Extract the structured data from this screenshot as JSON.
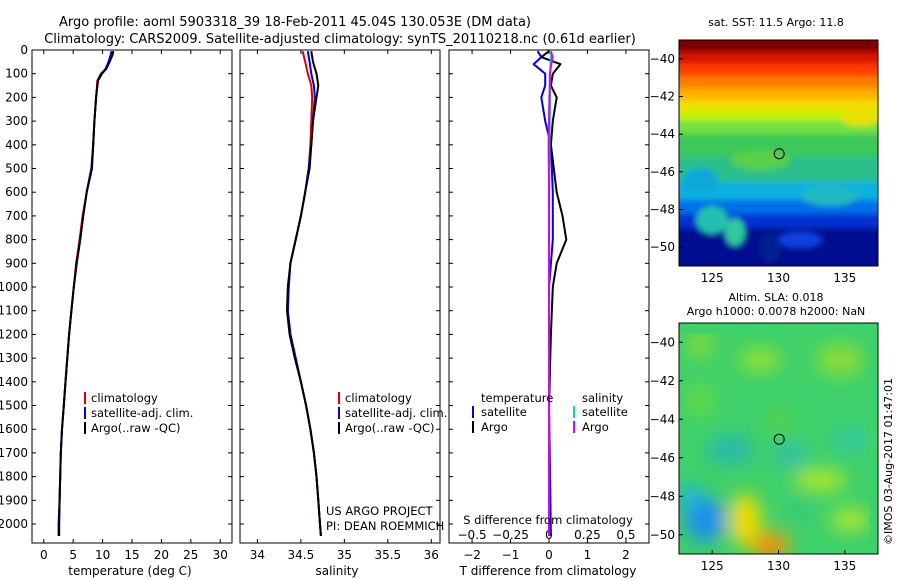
{
  "title_line1": "Argo profile: aoml 5903318_39 18-Feb-2011 45.04S 130.053E (DM data)",
  "title_line2": "Climatology: CARS2009. Satellite-adjusted climatology: synTS_20110218.nc (0.61d earlier)",
  "credits": {
    "project": "US ARGO PROJECT",
    "pi": "PI: DEAN ROEMMICH",
    "imos": "©IMOS 03-Aug-2017 01:47:01"
  },
  "colors": {
    "climatology": "#e00000",
    "satellite": "#0000e0",
    "argo": "#000000",
    "sat_salinity": "#00d8d8",
    "argo_salinity": "#e000e0"
  },
  "chart_data": [
    {
      "type": "line",
      "name": "temperature",
      "xlabel": "temperature (deg C)",
      "ylabel": "",
      "xlim": [
        -2,
        32
      ],
      "ylim": [
        2080,
        0
      ],
      "xticks": [
        0,
        5,
        10,
        15,
        20,
        25,
        30
      ],
      "yticks": [
        0,
        100,
        200,
        300,
        400,
        500,
        600,
        700,
        800,
        900,
        1000,
        1100,
        1200,
        1300,
        1400,
        1500,
        1600,
        1700,
        1800,
        1900,
        2000
      ],
      "legend": [
        "climatology",
        "satellite-adj. clim.",
        "Argo(..raw -QC)"
      ],
      "series": [
        {
          "name": "climatology",
          "color": "#e00000",
          "depth": [
            5,
            20,
            50,
            80,
            100,
            130,
            200,
            300,
            400,
            500,
            600,
            700,
            800,
            900,
            1000,
            1100,
            1200,
            1300,
            1400,
            1500,
            1600,
            1700,
            1800,
            1900,
            2000,
            2050
          ],
          "values": [
            11.8,
            11.6,
            11.1,
            10.6,
            9.7,
            9.1,
            8.9,
            8.6,
            8.4,
            8.1,
            7.3,
            6.6,
            6.1,
            5.5,
            5.1,
            4.7,
            4.3,
            4.0,
            3.7,
            3.4,
            3.1,
            2.9,
            2.8,
            2.7,
            2.5,
            2.5
          ]
        },
        {
          "name": "satellite",
          "color": "#0000e0",
          "depth": [
            5,
            20,
            50,
            80,
            100,
            130,
            200,
            300,
            400,
            500,
            600,
            700,
            800,
            900,
            1000,
            1100,
            1200,
            1300,
            1400,
            1500,
            1600,
            1700,
            1800,
            1900,
            2000,
            2050
          ],
          "values": [
            11.5,
            11.4,
            11.0,
            10.5,
            9.8,
            9.2,
            8.9,
            8.6,
            8.4,
            8.1,
            7.3,
            6.7,
            6.2,
            5.6,
            5.1,
            4.7,
            4.3,
            4.0,
            3.7,
            3.4,
            3.1,
            2.9,
            2.8,
            2.7,
            2.6,
            2.6
          ]
        },
        {
          "name": "Argo",
          "color": "#000000",
          "depth": [
            5,
            20,
            50,
            80,
            100,
            130,
            200,
            300,
            400,
            500,
            600,
            700,
            800,
            900,
            1000,
            1100,
            1200,
            1300,
            1400,
            1500,
            1600,
            1700,
            1800,
            1900,
            2000,
            2050
          ],
          "values": [
            11.8,
            11.7,
            11.2,
            10.6,
            9.9,
            9.2,
            8.9,
            8.6,
            8.4,
            8.2,
            7.3,
            6.7,
            6.2,
            5.6,
            5.1,
            4.7,
            4.3,
            4.0,
            3.7,
            3.4,
            3.1,
            2.9,
            2.8,
            2.7,
            2.6,
            2.6
          ]
        }
      ]
    },
    {
      "type": "line",
      "name": "salinity",
      "xlabel": "salinity",
      "xlim": [
        33.8,
        36.1
      ],
      "ylim": [
        2080,
        0
      ],
      "xticks": [
        34,
        34.5,
        35,
        35.5,
        36
      ],
      "legend": [
        "climatology",
        "satellite-adj. clim.",
        "Argo(..raw -QC)"
      ],
      "series": [
        {
          "name": "climatology",
          "color": "#e00000",
          "depth": [
            5,
            50,
            100,
            150,
            200,
            300,
            400,
            500,
            600,
            700,
            800,
            900,
            1000,
            1100,
            1200,
            1300,
            1400,
            1500,
            1600,
            1700,
            1800,
            1900,
            2000,
            2050
          ],
          "values": [
            34.52,
            34.55,
            34.58,
            34.62,
            34.63,
            34.62,
            34.61,
            34.59,
            34.55,
            34.5,
            34.44,
            34.38,
            34.36,
            34.35,
            34.38,
            34.44,
            34.5,
            34.56,
            34.61,
            34.65,
            34.68,
            34.7,
            34.72,
            34.73
          ]
        },
        {
          "name": "satellite",
          "color": "#0000e0",
          "depth": [
            5,
            50,
            100,
            150,
            200,
            300,
            400,
            500,
            600,
            700,
            800,
            900,
            1000,
            1100,
            1200,
            1300,
            1400,
            1500,
            1600,
            1700,
            1800,
            1900,
            2000,
            2050
          ],
          "values": [
            34.58,
            34.6,
            34.62,
            34.65,
            34.66,
            34.64,
            34.62,
            34.59,
            34.55,
            34.5,
            34.44,
            34.38,
            34.36,
            34.35,
            34.38,
            34.44,
            34.5,
            34.56,
            34.61,
            34.65,
            34.68,
            34.7,
            34.72,
            34.73
          ]
        },
        {
          "name": "Argo",
          "color": "#000000",
          "depth": [
            5,
            50,
            100,
            150,
            200,
            300,
            400,
            500,
            600,
            700,
            800,
            900,
            1000,
            1100,
            1200,
            1300,
            1400,
            1500,
            1600,
            1700,
            1800,
            1900,
            2000,
            2050
          ],
          "values": [
            34.62,
            34.64,
            34.68,
            34.7,
            34.68,
            34.64,
            34.62,
            34.6,
            34.55,
            34.5,
            34.44,
            34.38,
            34.35,
            34.34,
            34.37,
            34.43,
            34.5,
            34.56,
            34.61,
            34.65,
            34.68,
            34.7,
            34.72,
            34.73
          ]
        }
      ]
    },
    {
      "type": "line",
      "name": "difference",
      "xlabel": "T difference from climatology",
      "xlabel_top": "S difference from climatology",
      "xlim": [
        -2.6,
        2.6
      ],
      "ylim": [
        2080,
        0
      ],
      "xticks": [
        -2,
        -1,
        0,
        1,
        2
      ],
      "xticks_top": [
        -0.5,
        -0.25,
        0,
        0.25,
        0.5
      ],
      "legend_headers": [
        "temperature",
        "salinity"
      ],
      "legend": [
        "satellite",
        "Argo",
        "satellite",
        "Argo"
      ],
      "series": [
        {
          "name": "T satellite",
          "color": "#0000e0",
          "depth": [
            5,
            30,
            60,
            100,
            150,
            200,
            300,
            400,
            600,
            800,
            1000,
            1500,
            2050
          ],
          "values": [
            -0.3,
            -0.2,
            -0.4,
            -0.1,
            -0.1,
            -0.2,
            -0.1,
            0.05,
            0.1,
            0.1,
            0.0,
            0.0,
            0.05
          ]
        },
        {
          "name": "T Argo",
          "color": "#000000",
          "depth": [
            5,
            30,
            60,
            100,
            150,
            200,
            300,
            400,
            600,
            700,
            800,
            900,
            1000,
            1200,
            1500,
            2050
          ],
          "values": [
            0.0,
            -0.2,
            0.3,
            0.1,
            0.05,
            0.2,
            0.1,
            0.05,
            0.2,
            0.35,
            0.45,
            0.2,
            0.1,
            0.05,
            0.0,
            0.0
          ]
        },
        {
          "name": "S satellite",
          "color": "#00d8d8",
          "depth": [
            5,
            30,
            60,
            100,
            150,
            200,
            300,
            400,
            600,
            800,
            1000,
            1500,
            2050
          ],
          "values": [
            0.06,
            0.05,
            0.04,
            0.03,
            0.02,
            0.03,
            0.02,
            0.01,
            0.01,
            0.0,
            0.0,
            0.0,
            0.0
          ]
        },
        {
          "name": "S Argo",
          "color": "#e000e0",
          "depth": [
            5,
            30,
            60,
            100,
            150,
            200,
            300,
            400,
            600,
            800,
            1000,
            1500,
            2050
          ],
          "values": [
            0.05,
            0.09,
            0.06,
            0.02,
            0.02,
            0.01,
            0.0,
            -0.01,
            0.0,
            0.0,
            0.0,
            0.0,
            0.0
          ]
        }
      ]
    },
    {
      "type": "heatmap",
      "name": "sst_map",
      "title": "sat. SST: 11.5 Argo: 11.8",
      "xlim": [
        122.5,
        137.5
      ],
      "ylim": [
        -51,
        -39
      ],
      "xticks": [
        125,
        130,
        135
      ],
      "yticks": [
        -40,
        -42,
        -44,
        -46,
        -48,
        -50
      ],
      "marker": {
        "lon": 130.053,
        "lat": -45.04
      },
      "colorscale": "jet"
    },
    {
      "type": "heatmap",
      "name": "sla_map",
      "title": "Altim. SLA: 0.018",
      "subtitle": "Argo h1000: 0.0078 h2000: NaN",
      "xlim": [
        122.5,
        137.5
      ],
      "ylim": [
        -51,
        -39
      ],
      "xticks": [
        125,
        130,
        135
      ],
      "yticks": [
        -40,
        -42,
        -44,
        -46,
        -48,
        -50
      ],
      "marker": {
        "lon": 130.053,
        "lat": -45.04
      },
      "colorscale": "jet"
    }
  ]
}
